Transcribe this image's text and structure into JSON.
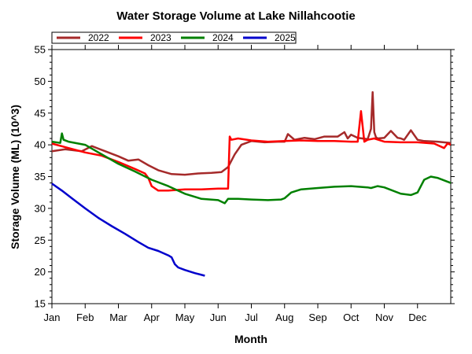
{
  "chart_data": {
    "type": "line",
    "title": "Water Storage Volume at Lake Nillahcootie",
    "xlabel": "Month",
    "ylabel": "Storage Volume (ML) (10^3)",
    "ylim": [
      15,
      55
    ],
    "yticks": [
      15,
      20,
      25,
      30,
      35,
      40,
      45,
      50,
      55
    ],
    "xlim": [
      0,
      12
    ],
    "months": [
      "Jan",
      "Feb",
      "Mar",
      "Apr",
      "May",
      "Jun",
      "Jul",
      "Aug",
      "Sep",
      "Oct",
      "Nov",
      "Dec"
    ],
    "x_unit": "month of year (0 = 1 Jan, 12 = 31 Dec)",
    "legend_position": "top-left",
    "grid": false,
    "series": [
      {
        "name": "2022",
        "color": "#a52a2a",
        "x": [
          0,
          0.4,
          0.9,
          1.2,
          1.6,
          2.0,
          2.3,
          2.6,
          2.9,
          3.2,
          3.6,
          4.0,
          4.4,
          4.8,
          5.1,
          5.3,
          5.5,
          5.7,
          6.0,
          6.4,
          6.8,
          7.0,
          7.1,
          7.3,
          7.6,
          7.9,
          8.2,
          8.6,
          8.8,
          8.9,
          9.0,
          9.2,
          9.5,
          9.6,
          9.65,
          9.7,
          9.75,
          9.8,
          10.0,
          10.2,
          10.4,
          10.5,
          10.6,
          10.8,
          11.0,
          11.2,
          11.6,
          12.0
        ],
        "values": [
          39.0,
          39.3,
          39.0,
          39.8,
          39.0,
          38.2,
          37.5,
          37.7,
          36.8,
          36.0,
          35.4,
          35.3,
          35.5,
          35.6,
          35.7,
          36.5,
          38.5,
          40.0,
          40.6,
          40.4,
          40.5,
          40.5,
          41.7,
          40.8,
          41.1,
          40.9,
          41.3,
          41.3,
          42.0,
          41.0,
          41.6,
          41.1,
          40.9,
          42.5,
          48.3,
          42.0,
          41.2,
          41.0,
          41.1,
          42.2,
          41.1,
          41.0,
          40.8,
          42.3,
          40.8,
          40.6,
          40.5,
          40.3
        ]
      },
      {
        "name": "2023",
        "color": "#ff0000",
        "x": [
          0,
          0.5,
          1.0,
          1.5,
          2.0,
          2.5,
          2.8,
          2.9,
          3.0,
          3.2,
          3.5,
          4.0,
          4.5,
          5.0,
          5.3,
          5.35,
          5.4,
          5.6,
          6.0,
          6.5,
          7.0,
          7.5,
          8.0,
          8.5,
          9.0,
          9.2,
          9.3,
          9.4,
          9.5,
          9.7,
          10.0,
          10.5,
          11.0,
          11.5,
          11.8,
          11.9,
          12.0
        ],
        "values": [
          40.2,
          39.5,
          38.8,
          38.3,
          37.3,
          36.2,
          35.5,
          34.8,
          33.5,
          32.8,
          32.8,
          33.0,
          33.0,
          33.1,
          33.1,
          41.3,
          40.8,
          41.0,
          40.7,
          40.5,
          40.6,
          40.7,
          40.6,
          40.6,
          40.5,
          40.5,
          45.3,
          40.5,
          40.8,
          41.0,
          40.5,
          40.4,
          40.4,
          40.2,
          39.5,
          40.2,
          40.0
        ]
      },
      {
        "name": "2024",
        "color": "#008000",
        "x": [
          0,
          0.25,
          0.3,
          0.35,
          0.5,
          1.0,
          1.5,
          2.0,
          2.5,
          3.0,
          3.5,
          4.0,
          4.5,
          5.0,
          5.2,
          5.3,
          5.6,
          6.0,
          6.5,
          6.9,
          7.0,
          7.2,
          7.5,
          8.0,
          8.5,
          9.0,
          9.5,
          9.6,
          9.8,
          10.0,
          10.5,
          10.8,
          11.0,
          11.2,
          11.4,
          11.6,
          12.0
        ],
        "values": [
          40.5,
          40.3,
          41.8,
          40.8,
          40.5,
          40.0,
          38.5,
          37.0,
          35.8,
          34.5,
          33.5,
          32.3,
          31.5,
          31.3,
          30.8,
          31.5,
          31.5,
          31.4,
          31.3,
          31.4,
          31.6,
          32.5,
          33.0,
          33.2,
          33.4,
          33.5,
          33.3,
          33.2,
          33.5,
          33.3,
          32.3,
          32.1,
          32.5,
          34.5,
          35.0,
          34.8,
          34.0
        ]
      },
      {
        "name": "2025",
        "color": "#0000cc",
        "x": [
          0,
          0.3,
          0.6,
          1.0,
          1.4,
          1.8,
          2.2,
          2.6,
          2.9,
          3.2,
          3.5,
          3.6,
          3.7,
          3.8,
          4.0,
          4.3,
          4.6
        ],
        "values": [
          33.9,
          32.8,
          31.6,
          30.0,
          28.5,
          27.2,
          26.0,
          24.7,
          23.8,
          23.3,
          22.6,
          22.3,
          21.2,
          20.7,
          20.3,
          19.8,
          19.4
        ]
      }
    ]
  }
}
